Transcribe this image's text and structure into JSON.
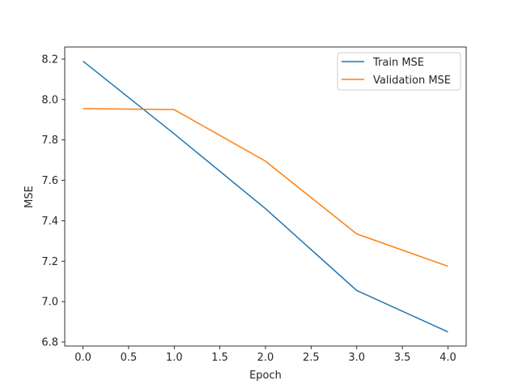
{
  "chart_data": {
    "type": "line",
    "title": "",
    "xlabel": "Epoch",
    "ylabel": "MSE",
    "xlim": [
      -0.2,
      4.2
    ],
    "ylim": [
      6.78,
      8.26
    ],
    "xticks": [
      0.0,
      0.5,
      1.0,
      1.5,
      2.0,
      2.5,
      3.0,
      3.5,
      4.0
    ],
    "xtick_labels": [
      "0.0",
      "0.5",
      "1.0",
      "1.5",
      "2.0",
      "2.5",
      "3.0",
      "3.5",
      "4.0"
    ],
    "yticks": [
      6.8,
      7.0,
      7.2,
      7.4,
      7.6,
      7.8,
      8.0,
      8.2
    ],
    "ytick_labels": [
      "6.8",
      "7.0",
      "7.2",
      "7.4",
      "7.6",
      "7.8",
      "8.0",
      "8.2"
    ],
    "x": [
      0,
      1,
      2,
      3,
      4
    ],
    "series": [
      {
        "name": "Train MSE",
        "color": "#1f77b4",
        "values": [
          8.19,
          7.83,
          7.46,
          7.055,
          6.85
        ]
      },
      {
        "name": "Validation MSE",
        "color": "#ff7f0e",
        "values": [
          7.955,
          7.95,
          7.695,
          7.335,
          7.175
        ]
      }
    ],
    "grid": false,
    "legend": "top-right"
  }
}
